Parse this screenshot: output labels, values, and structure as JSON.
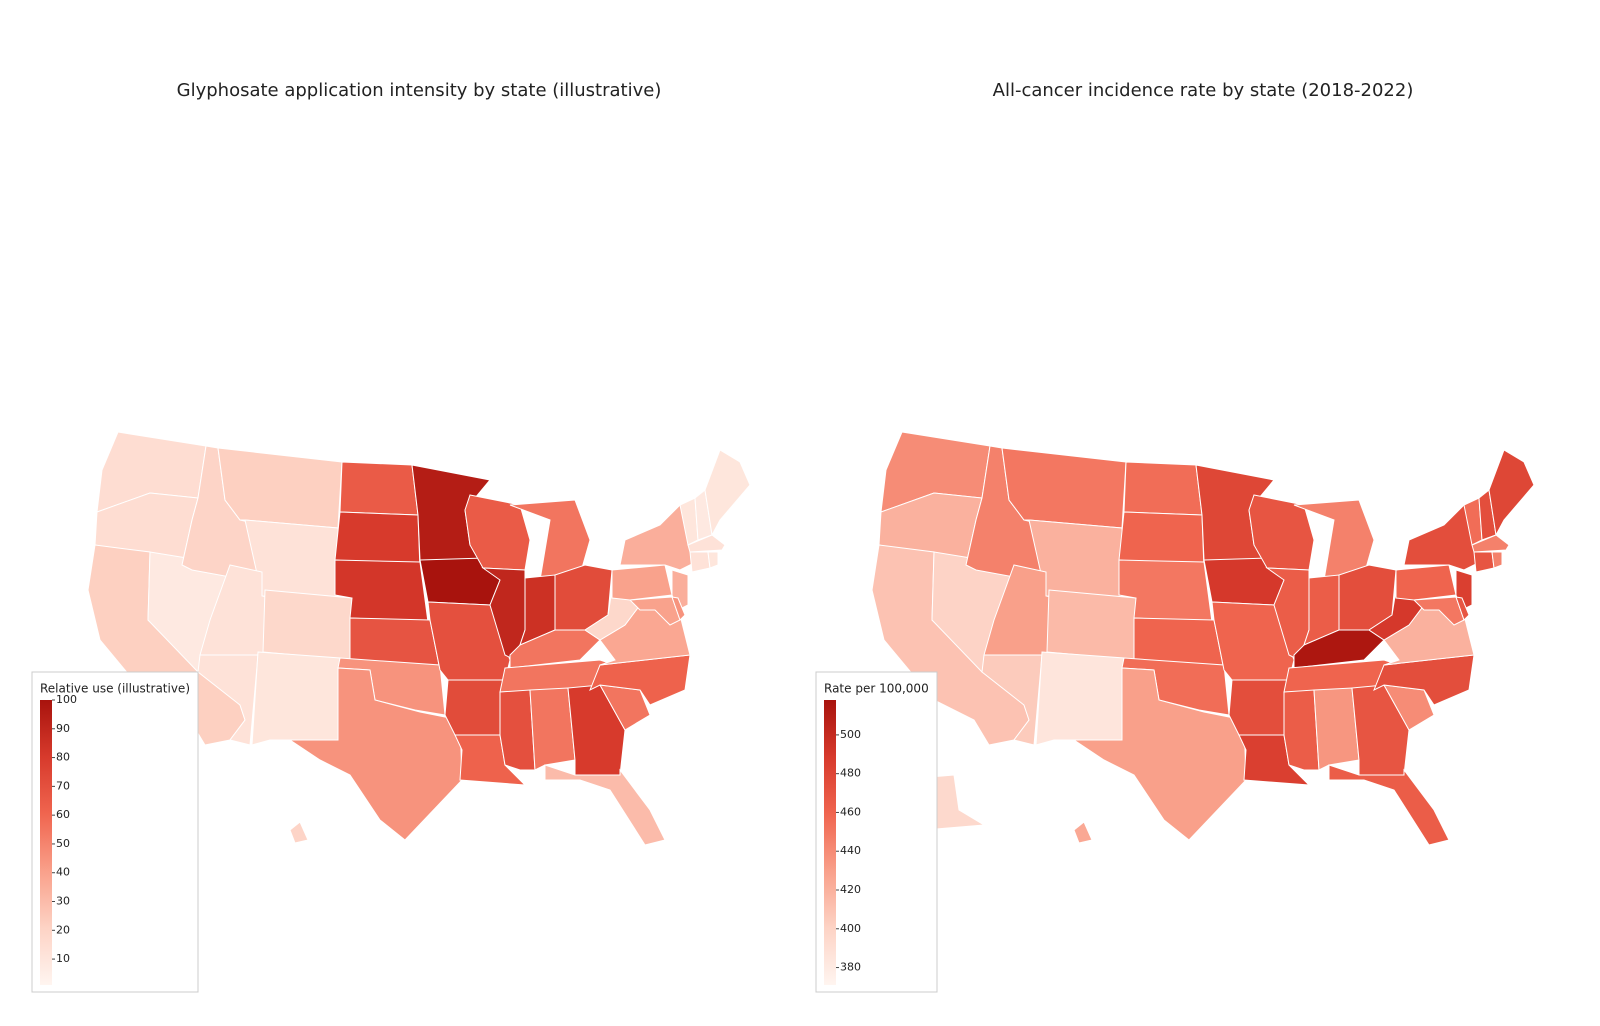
{
  "chart_data": [
    {
      "type": "choropleth",
      "title": "Glyphosate application intensity by state (illustrative)",
      "colorbar_title": "Relative use (illustrative)",
      "values": [
        15,
        15,
        22,
        8,
        20,
        22,
        12,
        12,
        18,
        12,
        10,
        65,
        80,
        82,
        68,
        45,
        45,
        95,
        100,
        70,
        72,
        62,
        65,
        90,
        55,
        85,
        72,
        55,
        55,
        70,
        55,
        80,
        30,
        55,
        62,
        38,
        18,
        40,
        35,
        35,
        40,
        45,
        10,
        8,
        10,
        12,
        12,
        10,
        3,
        20
      ],
      "zlim": [
        1,
        100
      ],
      "zticks": [
        10,
        20,
        30,
        40,
        50,
        60,
        70,
        80,
        90,
        100
      ],
      "colorscale": [
        "#fff5f0",
        "#fdd3c5",
        "#f9a08a",
        "#f0654f",
        "#d73a2c",
        "#a8130d"
      ]
    },
    {
      "type": "choropleth",
      "title": "All-cancer incidence rate by state (2018-2022)",
      "colorbar_title": "Rate per 100,000",
      "values": [
        440,
        420,
        410,
        400,
        445,
        450,
        420,
        430,
        415,
        405,
        385,
        455,
        460,
        450,
        460,
        455,
        430,
        480,
        490,
        460,
        475,
        485,
        470,
        465,
        445,
        465,
        475,
        515,
        460,
        465,
        435,
        470,
        465,
        440,
        475,
        420,
        490,
        460,
        475,
        485,
        450,
        470,
        455,
        475,
        480,
        445,
        470,
        445,
        395,
        425
      ],
      "zlim": [
        371,
        518
      ],
      "zticks": [
        380,
        400,
        420,
        440,
        460,
        480,
        500
      ],
      "colorscale": [
        "#fff5f0",
        "#fdd3c5",
        "#f9a08a",
        "#f0654f",
        "#d73a2c",
        "#a8130d"
      ]
    }
  ]
}
